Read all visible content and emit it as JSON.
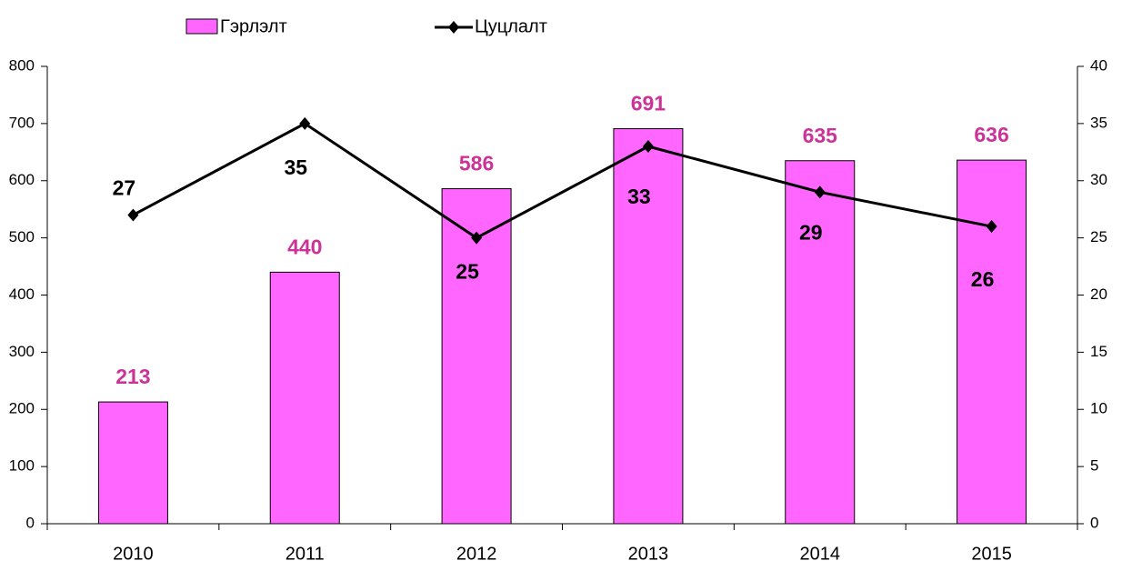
{
  "chart_data": {
    "type": "bar-line",
    "categories": [
      "2010",
      "2011",
      "2012",
      "2013",
      "2014",
      "2015"
    ],
    "series": [
      {
        "name": "Гэрлэлт",
        "type": "bar",
        "color": "#ff66ff",
        "label_color": "#cc3399",
        "values": [
          213,
          440,
          586,
          691,
          635,
          636
        ]
      },
      {
        "name": "Цуцлалт",
        "type": "line",
        "axis": "y2",
        "color": "#000000",
        "values": [
          27,
          35,
          25,
          33,
          29,
          26
        ]
      }
    ],
    "ylim": [
      0,
      800
    ],
    "yticks": [
      0,
      100,
      200,
      300,
      400,
      500,
      600,
      700,
      800
    ],
    "y2lim": [
      0,
      40
    ],
    "y2ticks": [
      0,
      5,
      10,
      15,
      20,
      25,
      30,
      35,
      40
    ],
    "grid": false,
    "legend": "top"
  }
}
